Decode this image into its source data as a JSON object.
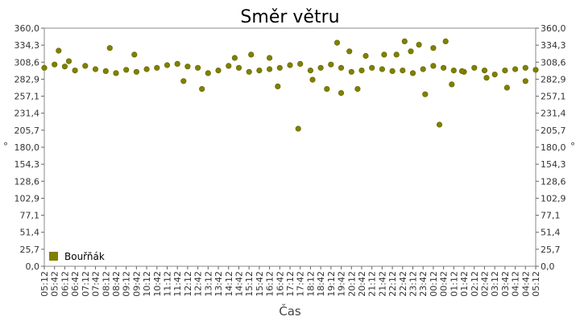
{
  "chart_data": {
    "type": "scatter",
    "title": "Směr větru",
    "xlabel": "Čas",
    "ylabel": "°",
    "ylabel_right": "°",
    "ylim": [
      0,
      360
    ],
    "y_ticks": [
      "0,0",
      "25,7",
      "51,4",
      "77,1",
      "102,9",
      "128,6",
      "154,3",
      "180,0",
      "205,7",
      "231,4",
      "257,1",
      "282,9",
      "308,6",
      "334,3",
      "360,0"
    ],
    "x_ticks": [
      "05:12",
      "05:42",
      "06:12",
      "06:42",
      "07:12",
      "07:42",
      "08:12",
      "08:42",
      "09:12",
      "09:42",
      "10:12",
      "10:42",
      "11:12",
      "11:42",
      "12:12",
      "12:42",
      "13:12",
      "13:42",
      "14:12",
      "14:42",
      "15:12",
      "15:42",
      "16:12",
      "16:42",
      "17:12",
      "17:42",
      "18:12",
      "18:42",
      "19:12",
      "19:42",
      "20:12",
      "20:42",
      "21:12",
      "21:42",
      "22:12",
      "22:42",
      "23:12",
      "23:42",
      "00:12",
      "00:42",
      "01:12",
      "01:42",
      "02:12",
      "02:42",
      "03:12",
      "03:42",
      "04:12",
      "04:42",
      "05:12"
    ],
    "grid": true,
    "legend_position": "bottom-left",
    "color": "#808000",
    "series": [
      {
        "name": "Bouřňák",
        "x": [
          0.0,
          0.5,
          1.0,
          1.5,
          2.0,
          2.5,
          3.0,
          3.5,
          4.0,
          4.5,
          5.0,
          5.5,
          6.0,
          6.5,
          7.0,
          7.5,
          8.0,
          8.5,
          9.0,
          9.5,
          10.0,
          10.5,
          11.0,
          11.5,
          12.0,
          12.5,
          13.0,
          13.5,
          14.0,
          14.5,
          15.0,
          15.5,
          16.0,
          16.5,
          17.0,
          17.5,
          18.0,
          18.5,
          19.0,
          19.5,
          20.0,
          20.5,
          21.0,
          21.5,
          22.0,
          22.5,
          23.0,
          23.5,
          24.0,
          0.7,
          1.2,
          3.2,
          4.4,
          6.8,
          7.7,
          9.3,
          10.1,
          11.0,
          11.4,
          12.4,
          13.1,
          13.8,
          14.3,
          14.5,
          14.9,
          15.3,
          15.7,
          16.6,
          17.2,
          17.6,
          17.9,
          18.3,
          18.6,
          19.0,
          19.3,
          19.6,
          19.9,
          20.4,
          21.6,
          22.6,
          23.5
        ],
        "y": [
          300,
          305,
          302,
          296,
          303,
          298,
          295,
          292,
          297,
          294,
          298,
          300,
          304,
          306,
          302,
          300,
          292,
          296,
          303,
          300,
          294,
          296,
          298,
          300,
          304,
          306,
          296,
          300,
          305,
          300,
          294,
          296,
          300,
          298,
          295,
          296,
          292,
          298,
          303,
          300,
          296,
          294,
          300,
          296,
          290,
          296,
          298,
          300,
          297,
          326,
          310,
          330,
          320,
          280,
          268,
          315,
          320,
          315,
          272,
          208,
          282,
          268,
          338,
          262,
          325,
          268,
          318,
          320,
          320,
          340,
          325,
          335,
          260,
          330,
          214,
          340,
          275,
          295,
          285,
          270,
          280
        ]
      }
    ]
  }
}
